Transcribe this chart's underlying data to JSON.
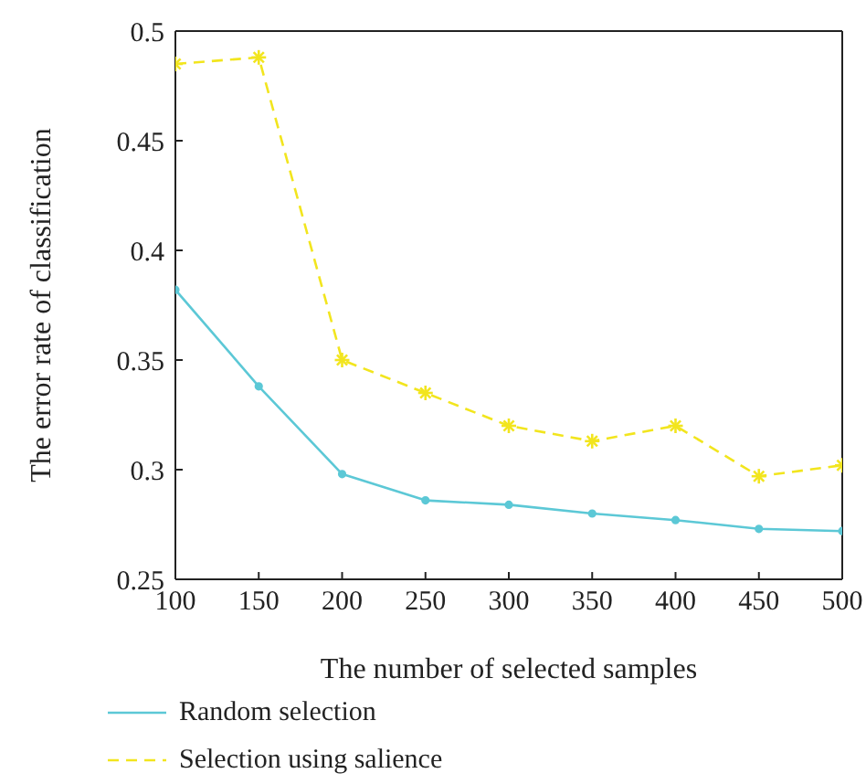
{
  "chart_data": {
    "type": "line",
    "xlabel": "The number of selected samples",
    "ylabel": "The error rate of classification",
    "x": [
      100,
      150,
      200,
      250,
      300,
      350,
      400,
      450,
      500
    ],
    "series": [
      {
        "name": "Random selection",
        "color": "#5cc8d6",
        "marker": "circle",
        "line_style": "solid",
        "values": [
          0.382,
          0.338,
          0.298,
          0.286,
          0.284,
          0.28,
          0.277,
          0.273,
          0.272
        ]
      },
      {
        "name": "Selection using salience",
        "color": "#f2e51e",
        "marker": "cross",
        "line_style": "dashed",
        "values": [
          0.485,
          0.488,
          0.35,
          0.335,
          0.32,
          0.313,
          0.32,
          0.297,
          0.302
        ]
      }
    ],
    "xlim": [
      100,
      500
    ],
    "xticks": [
      100,
      150,
      200,
      250,
      300,
      350,
      400,
      450,
      500
    ],
    "ylim": [
      0.25,
      0.5
    ],
    "yticks": [
      0.25,
      0.3,
      0.35,
      0.4,
      0.45,
      0.5
    ],
    "grid": false,
    "legend": "bottom left"
  }
}
